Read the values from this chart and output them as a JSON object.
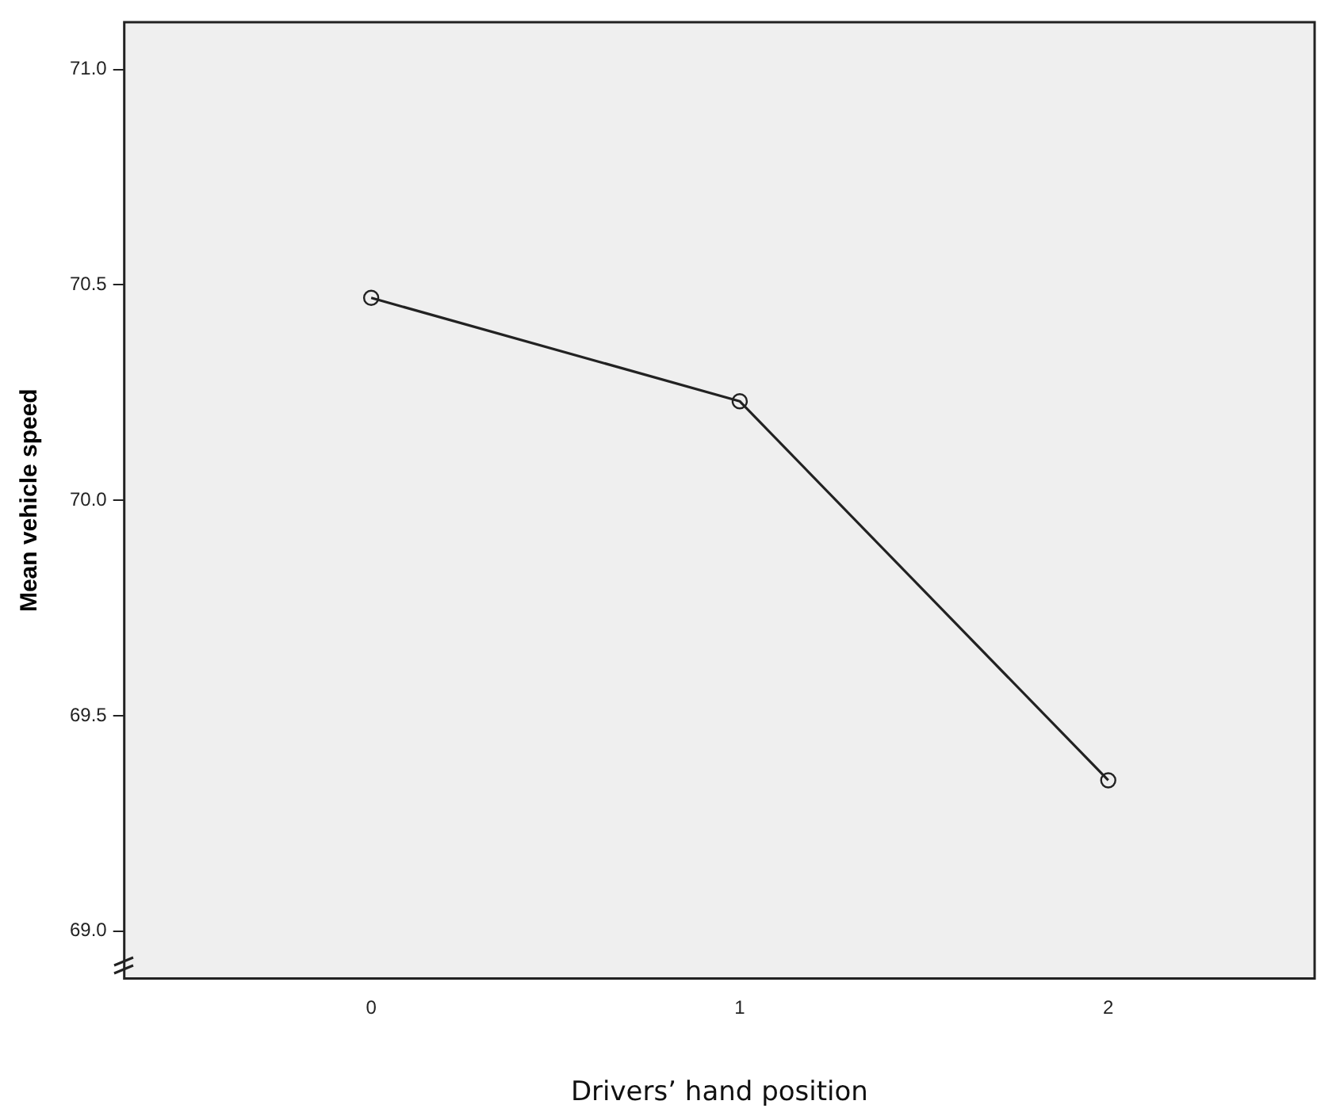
{
  "chart_data": {
    "type": "line",
    "xlabel": "Drivers’ hand position",
    "ylabel": "Mean vehicle speed",
    "x": [
      0,
      1,
      2
    ],
    "series": [
      {
        "color": "#222222",
        "values": [
          70.47,
          70.23,
          69.35
        ]
      }
    ],
    "xlim": [
      -0.67,
      2.56
    ],
    "xticks": [
      0,
      1,
      2
    ],
    "ylim": [
      68.89,
      71.11
    ],
    "yticks": [
      {
        "value": 69,
        "label": "69.0"
      },
      {
        "value": 69.5,
        "label": "69.5"
      },
      {
        "value": 70,
        "label": "70.0"
      },
      {
        "value": 70.5,
        "label": "70.5"
      },
      {
        "value": 71,
        "label": "71.0"
      }
    ],
    "marker": "circle",
    "line_style": "solid",
    "grid": false,
    "legend": false
  }
}
